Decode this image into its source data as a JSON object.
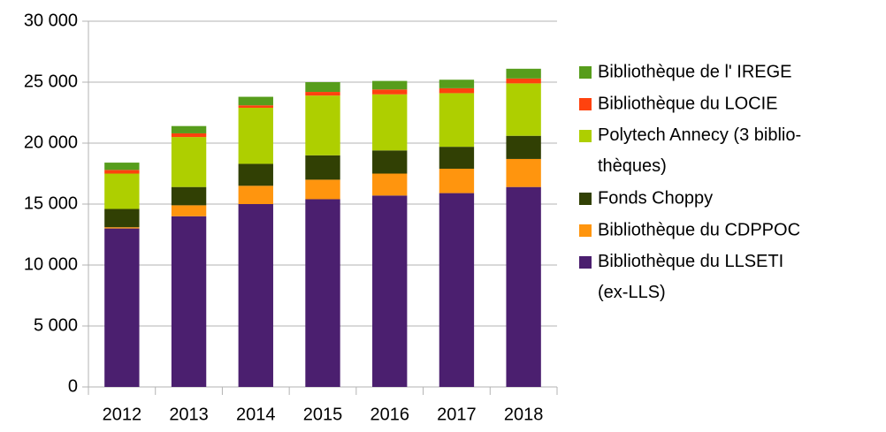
{
  "chart_data": {
    "type": "stacked_bar",
    "categories": [
      "2012",
      "2013",
      "2014",
      "2015",
      "2016",
      "2017",
      "2018"
    ],
    "series": [
      {
        "name": "Bibliothèque du LLSETI\n(ex-LLS)",
        "color": "#4b1f6f",
        "values": [
          13000,
          14000,
          15000,
          15400,
          15700,
          15900,
          16400
        ]
      },
      {
        "name": "Bibliothèque du CDPPOC",
        "color": "#ff950e",
        "values": [
          100,
          900,
          1500,
          1600,
          1800,
          2000,
          2300
        ]
      },
      {
        "name": "Fonds Choppy",
        "color": "#314004",
        "values": [
          1500,
          1500,
          1800,
          2000,
          1900,
          1800,
          1900
        ]
      },
      {
        "name": "Polytech Annecy (3 biblio-\nthèques)",
        "color": "#aecf00",
        "values": [
          2900,
          4100,
          4600,
          4900,
          4600,
          4400,
          4300
        ]
      },
      {
        "name": "Bibliothèque du LOCIE",
        "color": "#ff420e",
        "values": [
          300,
          300,
          200,
          300,
          400,
          400,
          400
        ]
      },
      {
        "name": "Bibliothèque de l' IREGE",
        "color": "#579d1c",
        "values": [
          600,
          600,
          700,
          800,
          700,
          700,
          800
        ]
      }
    ],
    "ylim": [
      0,
      30000
    ],
    "yticks": [
      0,
      {
        "value": 5000,
        "label": "5 000"
      },
      {
        "value": 10000,
        "label": "10 000"
      },
      {
        "value": 15000,
        "label": "15 000"
      },
      {
        "value": 20000,
        "label": "20 000"
      },
      {
        "value": 25000,
        "label": "25 000"
      },
      {
        "value": 30000,
        "label": "30 000"
      }
    ],
    "grid": true,
    "legend": "right"
  }
}
